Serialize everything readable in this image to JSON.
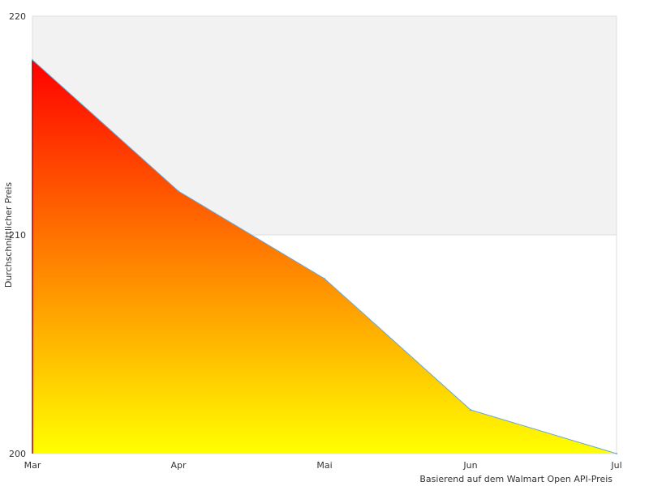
{
  "chart_data": {
    "type": "area",
    "title": "",
    "xlabel": "Basierend auf dem Walmart Open API-Preis",
    "ylabel": "Durchschnittlicher Preis",
    "categories": [
      "Mar",
      "Apr",
      "Mai",
      "Jun",
      "Jul"
    ],
    "values": [
      218,
      212,
      208,
      202,
      200
    ],
    "ylim": [
      200,
      220
    ],
    "yticks": [
      "200",
      "210",
      "220"
    ],
    "grid": false,
    "legend": "none",
    "colors": {
      "upper_band": "#f2f2f2",
      "line": "#6aa6d6",
      "fill_top": "#ff0000",
      "fill_bottom": "#ffff00",
      "plot_border": "#dddddd",
      "label": "#333333"
    }
  }
}
